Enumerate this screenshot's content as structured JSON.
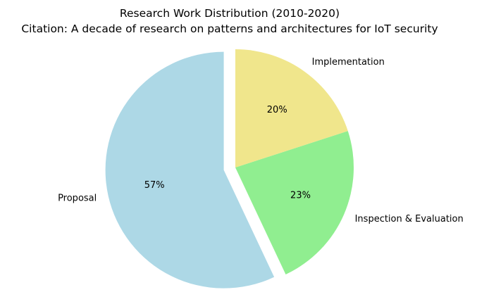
{
  "chart_data": {
    "type": "pie",
    "title": "Research Work Distribution (2010-2020)",
    "subtitle": "Citation: A decade of research on patterns and architectures for IoT security",
    "slices": [
      {
        "label": "Proposal",
        "value": 57,
        "pct_label": "57%",
        "color": "#add8e6",
        "exploded": true
      },
      {
        "label": "Inspection & Evaluation",
        "value": 23,
        "pct_label": "23%",
        "color": "#90ee90",
        "exploded": false
      },
      {
        "label": "Implementation",
        "value": 20,
        "pct_label": "20%",
        "color": "#f0e68c",
        "exploded": false
      }
    ],
    "start_angle_deg": 90,
    "direction": "counterclockwise"
  }
}
